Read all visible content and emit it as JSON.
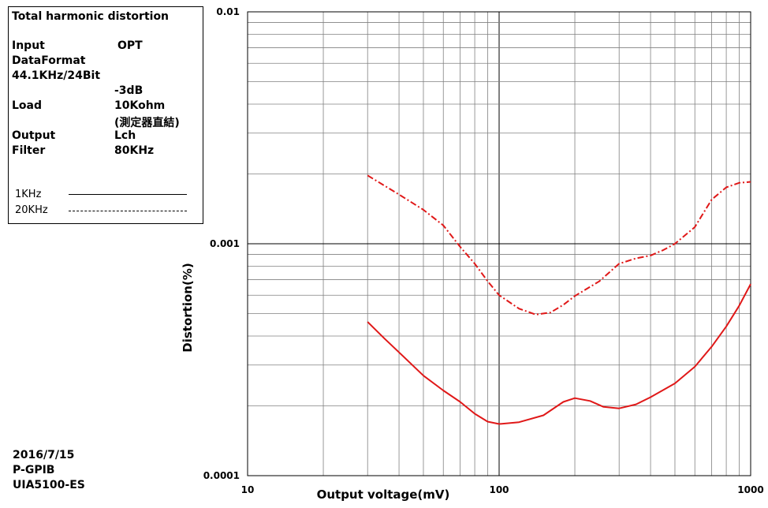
{
  "info": {
    "title": "Total harmonic distortion",
    "rows": [
      {
        "label": "Input",
        "value": "OPT"
      },
      {
        "label": "DataFormat",
        "value": ""
      },
      {
        "label": "44.1KHz/24Bit",
        "value": ""
      },
      {
        "label": "",
        "value": "-3dB"
      },
      {
        "label": "Load",
        "value": "10Kohm"
      },
      {
        "label": "",
        "value": "(測定器直結)"
      },
      {
        "label": "Output",
        "value": "Lch"
      },
      {
        "label": "Filter",
        "value": "80KHz"
      }
    ],
    "legend": [
      {
        "label": "1KHz",
        "style": "solid"
      },
      {
        "label": "20KHz",
        "style": "dash-dot"
      }
    ]
  },
  "meta": {
    "date": "2016/7/15",
    "interface": "P-GPIB",
    "instrument": "UIA5100-ES"
  },
  "colors": {
    "series": "#e01818",
    "grid": "#808080",
    "text": "#000000"
  },
  "chart_data": {
    "type": "line",
    "title": "",
    "xlabel": "Output voltage(mV)",
    "ylabel": "Distortion(%)",
    "xscale": "log",
    "yscale": "log",
    "xlim": [
      10,
      1000
    ],
    "ylim": [
      0.0001,
      0.01
    ],
    "xticks": [
      "10",
      "100",
      "1000"
    ],
    "yticks": [
      "0.0001",
      "0.001",
      "0.01"
    ],
    "grid": true,
    "legend_position": "top-left box",
    "series": [
      {
        "name": "1KHz",
        "style": "solid",
        "points": [
          [
            30,
            0.00046
          ],
          [
            35,
            0.00039
          ],
          [
            40,
            0.00034
          ],
          [
            50,
            0.00027
          ],
          [
            60,
            0.000233
          ],
          [
            70,
            0.000208
          ],
          [
            80,
            0.000185
          ],
          [
            90,
            0.000171
          ],
          [
            100,
            0.000167
          ],
          [
            120,
            0.00017
          ],
          [
            150,
            0.000182
          ],
          [
            180,
            0.000208
          ],
          [
            200,
            0.000216
          ],
          [
            230,
            0.00021
          ],
          [
            260,
            0.000198
          ],
          [
            300,
            0.000195
          ],
          [
            350,
            0.000203
          ],
          [
            400,
            0.000218
          ],
          [
            500,
            0.00025
          ],
          [
            600,
            0.000295
          ],
          [
            700,
            0.00036
          ],
          [
            800,
            0.00044
          ],
          [
            900,
            0.00054
          ],
          [
            1000,
            0.00067
          ]
        ]
      },
      {
        "name": "20KHz",
        "style": "dash-dot",
        "points": [
          [
            30,
            0.00197
          ],
          [
            40,
            0.00163
          ],
          [
            50,
            0.0014
          ],
          [
            60,
            0.0012
          ],
          [
            70,
            0.00097
          ],
          [
            80,
            0.00082
          ],
          [
            90,
            0.00069
          ],
          [
            100,
            0.0006
          ],
          [
            120,
            0.000525
          ],
          [
            140,
            0.000495
          ],
          [
            160,
            0.000505
          ],
          [
            180,
            0.000545
          ],
          [
            200,
            0.000595
          ],
          [
            250,
            0.000688
          ],
          [
            300,
            0.00082
          ],
          [
            350,
            0.000865
          ],
          [
            400,
            0.00089
          ],
          [
            450,
            0.00094
          ],
          [
            500,
            0.001
          ],
          [
            600,
            0.00118
          ],
          [
            650,
            0.00136
          ],
          [
            700,
            0.00155
          ],
          [
            800,
            0.00175
          ],
          [
            900,
            0.00183
          ],
          [
            1000,
            0.00185
          ]
        ]
      }
    ]
  }
}
